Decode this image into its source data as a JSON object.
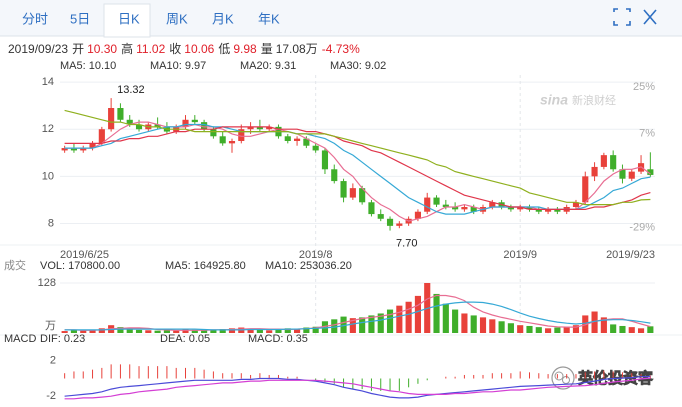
{
  "tabs": {
    "items": [
      "分时",
      "5日",
      "日K",
      "周K",
      "月K",
      "年K"
    ],
    "active": 2
  },
  "quote": {
    "date": "2019/09/23",
    "fields": [
      {
        "label": "开",
        "value": "10.30",
        "color": "#e0202a"
      },
      {
        "label": "高",
        "value": "11.02",
        "color": "#e0202a"
      },
      {
        "label": "收",
        "value": "10.06",
        "color": "#e0202a"
      },
      {
        "label": "低",
        "value": "9.98",
        "color": "#e0202a"
      },
      {
        "label": "量",
        "value": "17.08万",
        "color": "#333333"
      }
    ],
    "change": "-4.73%",
    "change_color": "#e0202a"
  },
  "watermarks": {
    "logo": "sina",
    "site": "新浪财经",
    "account": "英伦投资客"
  },
  "chart_data": [
    {
      "type": "candlestick",
      "up_color": "#e8413a",
      "down_color": "#3fae2a",
      "categories": [
        "2019/6/25",
        null,
        null,
        null,
        null,
        null,
        null,
        null,
        null,
        null,
        null,
        null,
        null,
        null,
        null,
        null,
        null,
        null,
        null,
        null,
        null,
        null,
        null,
        null,
        null,
        null,
        null,
        "2019/8",
        null,
        null,
        null,
        null,
        null,
        null,
        null,
        null,
        null,
        null,
        null,
        null,
        null,
        null,
        null,
        null,
        null,
        null,
        null,
        null,
        null,
        "2019/9",
        null,
        null,
        null,
        null,
        null,
        null,
        null,
        null,
        null,
        null,
        null,
        null,
        null,
        "2019/9/23"
      ],
      "candles": {
        "open": [
          11.1,
          11.2,
          11.1,
          11.2,
          11.4,
          12.0,
          12.9,
          12.4,
          12.2,
          12.0,
          12.2,
          12.1,
          11.9,
          12.1,
          12.4,
          12.3,
          12.0,
          11.7,
          11.4,
          11.5,
          12.0,
          12.1,
          12.0,
          12.1,
          11.7,
          11.5,
          11.6,
          11.3,
          11.1,
          10.3,
          9.8,
          9.1,
          9.5,
          8.9,
          8.4,
          8.2,
          7.9,
          8.0,
          8.2,
          8.5,
          9.1,
          8.8,
          8.7,
          8.6,
          8.7,
          8.5,
          8.7,
          8.9,
          8.7,
          8.6,
          8.7,
          8.6,
          8.5,
          8.6,
          8.5,
          8.7,
          8.9,
          10.0,
          10.4,
          10.9,
          10.3,
          9.9,
          10.2,
          10.3
        ],
        "high": [
          11.3,
          11.4,
          11.3,
          11.5,
          12.1,
          13.32,
          13.1,
          12.6,
          12.4,
          12.3,
          12.5,
          12.3,
          12.2,
          12.6,
          12.6,
          12.4,
          12.1,
          11.9,
          11.6,
          12.2,
          12.3,
          12.4,
          12.2,
          12.2,
          11.8,
          11.7,
          11.7,
          11.4,
          11.2,
          10.5,
          9.9,
          9.7,
          9.6,
          9.0,
          8.6,
          8.3,
          8.1,
          8.3,
          8.6,
          9.3,
          9.2,
          9.0,
          8.9,
          8.8,
          8.8,
          8.8,
          9.0,
          9.0,
          8.8,
          8.8,
          8.8,
          8.7,
          8.7,
          8.7,
          8.8,
          9.0,
          10.2,
          10.6,
          11.0,
          11.1,
          10.5,
          10.3,
          10.9,
          11.02
        ],
        "low": [
          11.0,
          11.0,
          11.0,
          11.1,
          11.3,
          11.9,
          12.3,
          12.1,
          11.9,
          11.9,
          12.0,
          11.8,
          11.8,
          12.0,
          12.2,
          11.9,
          11.6,
          11.3,
          11.0,
          11.4,
          11.8,
          11.9,
          11.9,
          11.6,
          11.4,
          11.3,
          11.2,
          11.0,
          10.1,
          9.7,
          8.9,
          9.0,
          8.8,
          8.3,
          8.1,
          7.7,
          7.8,
          7.9,
          8.1,
          8.4,
          8.7,
          8.6,
          8.5,
          8.5,
          8.4,
          8.4,
          8.6,
          8.6,
          8.5,
          8.5,
          8.5,
          8.4,
          8.4,
          8.4,
          8.4,
          8.6,
          8.8,
          9.8,
          10.3,
          10.2,
          9.7,
          9.8,
          10.1,
          9.98
        ],
        "close": [
          11.2,
          11.1,
          11.2,
          11.4,
          12.0,
          12.9,
          12.4,
          12.2,
          12.0,
          12.2,
          12.1,
          11.9,
          12.1,
          12.4,
          12.3,
          12.0,
          11.7,
          11.4,
          11.5,
          12.0,
          12.1,
          12.0,
          12.1,
          11.7,
          11.5,
          11.6,
          11.3,
          11.1,
          10.3,
          9.8,
          9.1,
          9.5,
          8.9,
          8.4,
          8.2,
          7.9,
          8.0,
          8.2,
          8.5,
          9.1,
          8.8,
          8.7,
          8.6,
          8.7,
          8.5,
          8.7,
          8.9,
          8.7,
          8.6,
          8.7,
          8.6,
          8.5,
          8.6,
          8.5,
          8.7,
          8.9,
          10.0,
          10.4,
          10.9,
          10.3,
          9.9,
          10.2,
          10.56,
          10.06
        ]
      },
      "series": [
        {
          "name": "MA5",
          "legend": "MA5: 10.10",
          "color": "#e86e93",
          "values": [
            11.2,
            11.2,
            11.2,
            11.2,
            11.4,
            11.7,
            12.0,
            12.2,
            12.3,
            12.3,
            12.2,
            12.1,
            12.1,
            12.1,
            12.2,
            12.1,
            12.1,
            12.0,
            11.8,
            11.7,
            11.7,
            11.8,
            11.9,
            12.0,
            11.9,
            11.8,
            11.6,
            11.4,
            11.2,
            10.8,
            10.3,
            10.0,
            9.5,
            9.1,
            8.8,
            8.6,
            8.3,
            8.1,
            8.2,
            8.3,
            8.5,
            8.7,
            8.7,
            8.8,
            8.7,
            8.6,
            8.7,
            8.7,
            8.7,
            8.7,
            8.7,
            8.6,
            8.6,
            8.6,
            8.6,
            8.6,
            8.9,
            9.3,
            9.8,
            10.1,
            10.3,
            10.3,
            10.4,
            10.1
          ]
        },
        {
          "name": "MA10",
          "legend": "MA10: 9.97",
          "color": "#36a9d6",
          "values": [
            11.2,
            11.2,
            11.2,
            11.2,
            11.3,
            11.4,
            11.6,
            11.7,
            11.8,
            11.9,
            12.0,
            12.1,
            12.1,
            12.2,
            12.2,
            12.2,
            12.1,
            12.1,
            12.0,
            11.9,
            11.9,
            11.9,
            11.9,
            11.9,
            11.9,
            11.8,
            11.8,
            11.7,
            11.6,
            11.4,
            11.1,
            10.9,
            10.6,
            10.3,
            10.0,
            9.7,
            9.4,
            9.1,
            8.9,
            8.7,
            8.5,
            8.4,
            8.4,
            8.4,
            8.5,
            8.6,
            8.7,
            8.7,
            8.7,
            8.7,
            8.7,
            8.7,
            8.6,
            8.6,
            8.6,
            8.6,
            8.7,
            8.9,
            9.1,
            9.4,
            9.5,
            9.7,
            9.9,
            9.97
          ]
        },
        {
          "name": "MA20",
          "legend": "MA20: 9.31",
          "color": "#e0364b",
          "values": [
            11.4,
            11.4,
            11.4,
            11.4,
            11.4,
            11.5,
            11.5,
            11.6,
            11.6,
            11.7,
            11.7,
            11.8,
            11.9,
            11.9,
            12.0,
            12.0,
            12.0,
            12.1,
            12.1,
            12.1,
            12.1,
            12.1,
            12.1,
            12.0,
            12.0,
            12.0,
            11.9,
            11.9,
            11.8,
            11.7,
            11.5,
            11.4,
            11.3,
            11.1,
            11.0,
            10.8,
            10.6,
            10.4,
            10.2,
            10.0,
            9.8,
            9.6,
            9.4,
            9.2,
            9.1,
            9.0,
            8.9,
            8.8,
            8.7,
            8.7,
            8.6,
            8.6,
            8.6,
            8.6,
            8.6,
            8.6,
            8.6,
            8.7,
            8.7,
            8.8,
            8.9,
            9.0,
            9.2,
            9.31
          ]
        },
        {
          "name": "MA30",
          "legend": "MA30: 9.02",
          "color": "#8fb01e",
          "values": [
            12.8,
            12.7,
            12.6,
            12.5,
            12.4,
            12.3,
            12.3,
            12.2,
            12.2,
            12.1,
            12.1,
            12.0,
            12.0,
            12.0,
            11.9,
            11.9,
            11.9,
            11.9,
            11.9,
            11.9,
            11.9,
            11.9,
            11.9,
            11.9,
            11.9,
            11.8,
            11.8,
            11.8,
            11.8,
            11.7,
            11.6,
            11.5,
            11.4,
            11.3,
            11.2,
            11.1,
            11.0,
            10.9,
            10.8,
            10.7,
            10.5,
            10.4,
            10.2,
            10.1,
            10.0,
            9.9,
            9.8,
            9.7,
            9.6,
            9.5,
            9.3,
            9.2,
            9.1,
            9.0,
            8.9,
            8.9,
            8.8,
            8.8,
            8.8,
            8.8,
            8.9,
            8.9,
            9.0,
            9.02
          ]
        }
      ],
      "annotations": [
        {
          "value": 13.32,
          "label": "13.32"
        },
        {
          "value": 7.7,
          "label": "7.70"
        }
      ],
      "ylim": [
        7.3,
        14.3
      ],
      "yticks": [
        14,
        12,
        10,
        8
      ],
      "y2lim": [
        -33.8,
        29.6
      ],
      "y2ticks": [
        {
          "value": 25,
          "label": "25%"
        },
        {
          "value": 7,
          "label": "7%"
        },
        {
          "value": -29,
          "label": "-29%"
        }
      ],
      "grid": true
    },
    {
      "type": "bar",
      "title": "成交",
      "up_color": "#e8413a",
      "down_color": "#3fae2a",
      "legend": "VOL: 170800.00",
      "legend_color": "#3a7bd5",
      "values": [
        5,
        8,
        6,
        7,
        12,
        20,
        15,
        10,
        8,
        7,
        6,
        7,
        6,
        9,
        8,
        7,
        8,
        10,
        12,
        14,
        9,
        8,
        7,
        10,
        12,
        11,
        14,
        16,
        30,
        35,
        42,
        38,
        40,
        45,
        50,
        60,
        70,
        80,
        95,
        128,
        100,
        75,
        60,
        50,
        45,
        40,
        35,
        30,
        25,
        20,
        18,
        15,
        12,
        14,
        16,
        20,
        45,
        55,
        40,
        22,
        18,
        15,
        12,
        17.08
      ],
      "series": [
        {
          "name": "MA5",
          "legend": "MA5: 164925.80",
          "color": "#e86e93",
          "values": [
            8,
            8,
            7,
            7,
            8,
            11,
            12,
            13,
            13,
            12,
            9,
            8,
            7,
            7,
            7,
            7,
            8,
            8,
            9,
            10,
            11,
            11,
            10,
            10,
            9,
            10,
            11,
            13,
            17,
            21,
            27,
            32,
            37,
            40,
            43,
            47,
            53,
            61,
            71,
            87,
            96,
            96,
            92,
            83,
            66,
            54,
            46,
            40,
            35,
            30,
            26,
            22,
            18,
            16,
            15,
            15,
            21,
            30,
            34,
            36,
            36,
            30,
            23,
            16.49
          ]
        },
        {
          "name": "MA10",
          "legend": "MA10: 253036.20",
          "color": "#36a9d6",
          "values": [
            8,
            8,
            8,
            8,
            8,
            9,
            10,
            10,
            10,
            10,
            10,
            10,
            10,
            10,
            10,
            9,
            8,
            8,
            8,
            8,
            9,
            9,
            9,
            9,
            10,
            10,
            11,
            12,
            13,
            15,
            19,
            23,
            27,
            30,
            33,
            38,
            43,
            48,
            55,
            63,
            69,
            74,
            77,
            79,
            79,
            78,
            74,
            68,
            60,
            51,
            43,
            37,
            32,
            28,
            25,
            23,
            25,
            30,
            33,
            34,
            34,
            32,
            29,
            25.3
          ]
        }
      ],
      "ylim": [
        0,
        128
      ],
      "yticks": [
        {
          "value": 128,
          "label": "128"
        }
      ],
      "unit": "万"
    },
    {
      "type": "macd",
      "title": "MACD",
      "up_color": "#e8413a",
      "down_color": "#3fae2a",
      "legend": "MACD: 0.35",
      "legend_color": "#e0364b",
      "values": [
        0.6,
        0.8,
        0.8,
        1.0,
        1.2,
        1.6,
        1.6,
        1.6,
        1.4,
        1.4,
        1.4,
        1.4,
        1.2,
        1.2,
        1.2,
        1.0,
        0.8,
        0.6,
        0.6,
        0.6,
        0.4,
        0.6,
        0.4,
        0.4,
        0.2,
        0.2,
        0,
        -0.2,
        -0.4,
        -0.6,
        -1.0,
        -1.2,
        -1.2,
        -1.4,
        -1.4,
        -1.4,
        -1.4,
        -1.0,
        -0.6,
        -0.2,
        0,
        0.2,
        0.2,
        0.4,
        0.4,
        0.4,
        0.6,
        0.6,
        0.6,
        0.8,
        0.7,
        0.6,
        0.5,
        0.5,
        0.5,
        0.5,
        0.7,
        0.8,
        0.9,
        0.8,
        0.7,
        0.6,
        0.5,
        0.35
      ],
      "series": [
        {
          "name": "DIF",
          "legend": "DIF: 0.23",
          "color": "#4b4bd8",
          "values": [
            -2.0,
            -1.9,
            -1.8,
            -1.7,
            -1.5,
            -1.2,
            -1.0,
            -0.9,
            -0.8,
            -0.7,
            -0.6,
            -0.5,
            -0.4,
            -0.3,
            -0.2,
            -0.2,
            -0.2,
            -0.2,
            -0.2,
            -0.1,
            -0.1,
            0,
            0,
            0,
            -0.1,
            -0.1,
            -0.2,
            -0.3,
            -0.5,
            -0.7,
            -1.0,
            -1.2,
            -1.4,
            -1.7,
            -1.9,
            -2.1,
            -2.2,
            -2.2,
            -2.1,
            -1.9,
            -1.8,
            -1.7,
            -1.6,
            -1.5,
            -1.4,
            -1.3,
            -1.2,
            -1.1,
            -1.0,
            -0.9,
            -0.85,
            -0.8,
            -0.75,
            -0.7,
            -0.65,
            -0.6,
            -0.45,
            -0.3,
            -0.1,
            0.0,
            0.05,
            0.1,
            0.2,
            0.23
          ]
        },
        {
          "name": "DEA",
          "legend": "DEA: 0.05",
          "color": "#d43fd4",
          "values": [
            -2.3,
            -2.3,
            -2.2,
            -2.2,
            -2.1,
            -2.0,
            -1.8,
            -1.7,
            -1.5,
            -1.4,
            -1.3,
            -1.2,
            -1.0,
            -0.9,
            -0.8,
            -0.7,
            -0.6,
            -0.5,
            -0.5,
            -0.4,
            -0.3,
            -0.3,
            -0.2,
            -0.2,
            -0.2,
            -0.2,
            -0.2,
            -0.2,
            -0.3,
            -0.4,
            -0.5,
            -0.6,
            -0.8,
            -1.0,
            -1.2,
            -1.4,
            -1.5,
            -1.7,
            -1.8,
            -1.8,
            -1.8,
            -1.8,
            -1.7,
            -1.7,
            -1.6,
            -1.5,
            -1.5,
            -1.4,
            -1.3,
            -1.3,
            -1.2,
            -1.1,
            -1.0,
            -0.95,
            -0.9,
            -0.85,
            -0.8,
            -0.7,
            -0.55,
            -0.4,
            -0.3,
            -0.2,
            -0.05,
            0.05
          ]
        }
      ],
      "ylim": [
        -3,
        3
      ],
      "yticks": [
        2,
        -2
      ]
    }
  ]
}
